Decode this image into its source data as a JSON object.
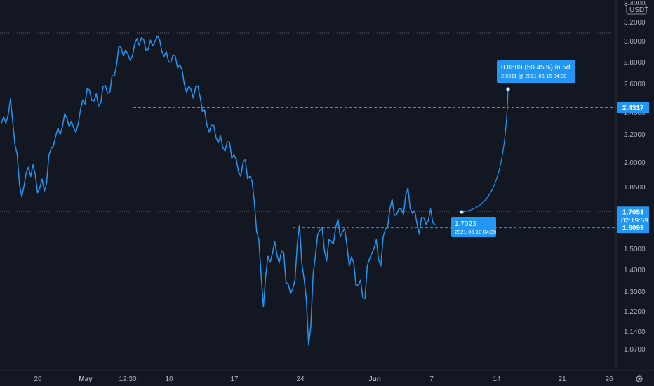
{
  "chart_data": {
    "type": "line",
    "quote_currency": "USDT",
    "ylim": [
      1.0,
      3.4
    ],
    "y_ticks": [
      "3.4000",
      "3.2000",
      "3.0000",
      "2.8000",
      "2.6000",
      "2.4000",
      "2.2000",
      "2.0000",
      "1.8500",
      "1.6000",
      "1.5000",
      "1.4000",
      "1.3000",
      "1.2200",
      "1.1400",
      "1.0700"
    ],
    "x_ticks": [
      "26",
      "May",
      "12:30",
      "10",
      "17",
      "24",
      "Jun",
      "7",
      "14",
      "21",
      "26"
    ],
    "series": [
      {
        "x": [
          "Apr 20",
          "Apr 21",
          "Apr 22",
          "Apr 23",
          "Apr 24",
          "Apr 25",
          "Apr 26",
          "Apr 27",
          "Apr 28",
          "Apr 29",
          "Apr 30",
          "May 1",
          "May 2",
          "May 3",
          "May 4",
          "May 5",
          "May 6",
          "May 7",
          "May 8",
          "May 9",
          "May 10",
          "May 11",
          "May 12",
          "May 13",
          "May 14",
          "May 15",
          "May 16",
          "May 17",
          "May 18",
          "May 19",
          "May 20",
          "May 21",
          "May 22",
          "May 23",
          "May 24",
          "May 25",
          "May 26",
          "May 27",
          "May 28",
          "May 29",
          "May 30",
          "May 31",
          "Jun 1",
          "Jun 2",
          "Jun 3",
          "Jun 4",
          "Jun 5",
          "Jun 6",
          "Jun 7"
        ],
        "values": [
          2.3,
          2.45,
          1.82,
          1.96,
          1.86,
          1.91,
          2.2,
          2.34,
          2.22,
          2.46,
          2.53,
          2.5,
          2.57,
          2.9,
          2.84,
          2.98,
          2.96,
          3.02,
          2.9,
          2.82,
          2.7,
          2.5,
          2.55,
          2.24,
          2.2,
          2.1,
          2.0,
          1.95,
          1.8,
          1.25,
          1.55,
          1.45,
          1.28,
          1.55,
          1.12,
          1.58,
          1.52,
          1.58,
          1.6,
          1.35,
          1.3,
          1.48,
          1.5,
          1.7,
          1.72,
          1.76,
          1.65,
          1.63,
          1.71
        ]
      }
    ],
    "projection": {
      "start": {
        "value": 1.7023,
        "label": "1.7023",
        "timestamp": "2021-06-10 04:30"
      },
      "end": {
        "value": 2.5611,
        "timestamp": "2021-06-15  04:30"
      },
      "change_label": "0.8589 (50.45%) in 5d",
      "end_label": "2.5611 @ 2021-06-15  04:30"
    },
    "horizontal_lines": [
      {
        "value": 2.4317,
        "label": "2.4317",
        "style": "dashed"
      },
      {
        "value": 1.6099,
        "label": "1.6099",
        "style": "dashed"
      }
    ],
    "current_price": {
      "value": 1.7053,
      "label": "1.7053",
      "countdown": "02:19:59"
    }
  },
  "colors": {
    "background": "#131722",
    "line": "#2196f3",
    "axis_text": "#b2b5be",
    "tag": "#2196f3",
    "dotted": "#5d6170"
  }
}
